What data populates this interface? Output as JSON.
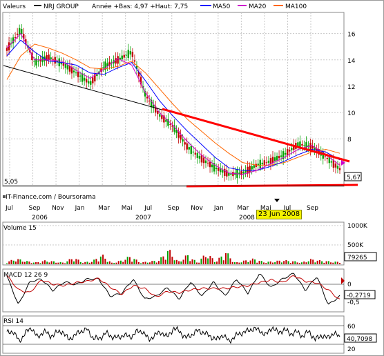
{
  "header": {
    "valeurs_label": "Valeurs",
    "instrument": "NRJ GROUP",
    "stats": "Année +Bas: 4,97 +Haut: 7,75",
    "ma50": "MA50",
    "ma20": "MA20",
    "ma100": "MA100"
  },
  "colors": {
    "price_up": "#00a000",
    "price_down": "#c00000",
    "ma50": "#0000ff",
    "ma20": "#cc00cc",
    "ma100": "#ff6600",
    "trendline": "#ff0000",
    "grid": "#c8c8c8",
    "cursor_box": "#f4f200"
  },
  "price_panel": {
    "low_label": "5,05",
    "last_label": "5,67",
    "credit": "IT-Finance.com / Boursorama",
    "selected_date": "23 Jun 2008"
  },
  "volume_panel": {
    "title": "Volume 15",
    "last_value": "79265"
  },
  "macd_panel": {
    "title": "MACD 12 26 9",
    "last_value": "-0,2719"
  },
  "rsi_panel": {
    "title": "RSI 14",
    "last_value": "40,7098"
  },
  "chart_data": [
    {
      "type": "line",
      "name": "price",
      "title": "NRJ GROUP",
      "x_ticks": [
        "Jul",
        "Sep",
        "Nov",
        "Jan",
        "Mar",
        "Mai",
        "Jul",
        "Sep",
        "Nov",
        "Jan",
        "Mar",
        "Mai",
        "Jul",
        "Sep"
      ],
      "year_labels": [
        "2006",
        "2007",
        "2008"
      ],
      "y_ticks": [
        8,
        10,
        12,
        14,
        16
      ],
      "ylim": [
        4.5,
        17.5
      ],
      "series": [
        {
          "name": "MA50",
          "values": [
            14.3,
            15.5,
            14.6,
            13.9,
            13.8,
            13.6,
            13.0,
            12.9,
            13.4,
            13.8,
            12.4,
            10.9,
            9.7,
            8.6,
            7.6,
            6.6,
            5.8,
            5.6,
            5.6,
            5.9,
            6.3,
            6.8,
            7.2,
            7.0,
            6.4
          ]
        },
        {
          "name": "MA20",
          "values": [
            14.9,
            16.0,
            14.0,
            14.0,
            13.9,
            13.2,
            12.6,
            13.3,
            14.1,
            13.6,
            11.5,
            10.0,
            9.0,
            7.8,
            6.8,
            6.0,
            5.4,
            5.3,
            5.6,
            6.1,
            6.6,
            7.2,
            7.5,
            6.8,
            6.0
          ]
        },
        {
          "name": "MA100",
          "values": [
            12.5,
            14.3,
            15.2,
            14.9,
            14.5,
            14.0,
            13.4,
            13.3,
            13.5,
            13.9,
            13.0,
            11.8,
            10.6,
            9.5,
            8.6,
            7.7,
            6.9,
            6.2,
            6.0,
            6.0,
            6.2,
            6.6,
            7.0,
            7.2,
            6.9
          ]
        },
        {
          "name": "price",
          "values": [
            14.8,
            16.3,
            13.8,
            14.2,
            13.7,
            13.0,
            12.2,
            13.5,
            14.0,
            14.6,
            11.3,
            9.8,
            8.9,
            7.4,
            6.5,
            5.8,
            5.3,
            5.4,
            6.0,
            6.3,
            6.8,
            7.6,
            7.4,
            6.6,
            5.7
          ]
        }
      ]
    },
    {
      "type": "bar",
      "name": "volume",
      "title": "Volume 15",
      "y_ticks": [
        "500K",
        "1000K"
      ],
      "ylim": [
        0,
        1000
      ],
      "values_k": [
        55,
        120,
        70,
        40,
        80,
        60,
        35,
        150,
        40,
        70,
        210,
        30,
        80,
        180,
        40,
        60,
        90,
        330,
        50,
        210,
        40,
        240,
        60,
        280,
        35,
        80,
        120,
        50,
        60,
        90,
        70,
        40,
        110,
        80,
        60,
        50
      ]
    },
    {
      "type": "line",
      "name": "macd",
      "title": "MACD 12 26 9",
      "y_ticks": [
        "0",
        "-0,5"
      ],
      "ylim": [
        -0.8,
        0.6
      ],
      "values": [
        0.4,
        -0.6,
        0.2,
        0.3,
        -0.1,
        0.2,
        0.1,
        0.3,
        0.3,
        -0.3,
        -0.2,
        0.3,
        -0.4,
        -0.3,
        0.0,
        -0.4,
        0.2,
        -0.3,
        0.2,
        -0.3,
        0.3,
        -0.2,
        0.5,
        0.0,
        0.3,
        0.5,
        -0.1,
        0.4,
        -0.6,
        -0.3
      ]
    },
    {
      "type": "line",
      "name": "rsi",
      "title": "RSI 14",
      "y_ticks": [
        20,
        60
      ],
      "ylim": [
        0,
        100
      ],
      "values": [
        55,
        60,
        30,
        55,
        70,
        40,
        62,
        45,
        55,
        60,
        35,
        48,
        60,
        65,
        40,
        38,
        55,
        45,
        40,
        50,
        42,
        58,
        60,
        35,
        48,
        58,
        42,
        68,
        60,
        40,
        50,
        62,
        55,
        45,
        35,
        50,
        30,
        45,
        55,
        60,
        68,
        62,
        48,
        72,
        55,
        65,
        52,
        58,
        45,
        60,
        35,
        48,
        40,
        55,
        42
      ]
    }
  ]
}
